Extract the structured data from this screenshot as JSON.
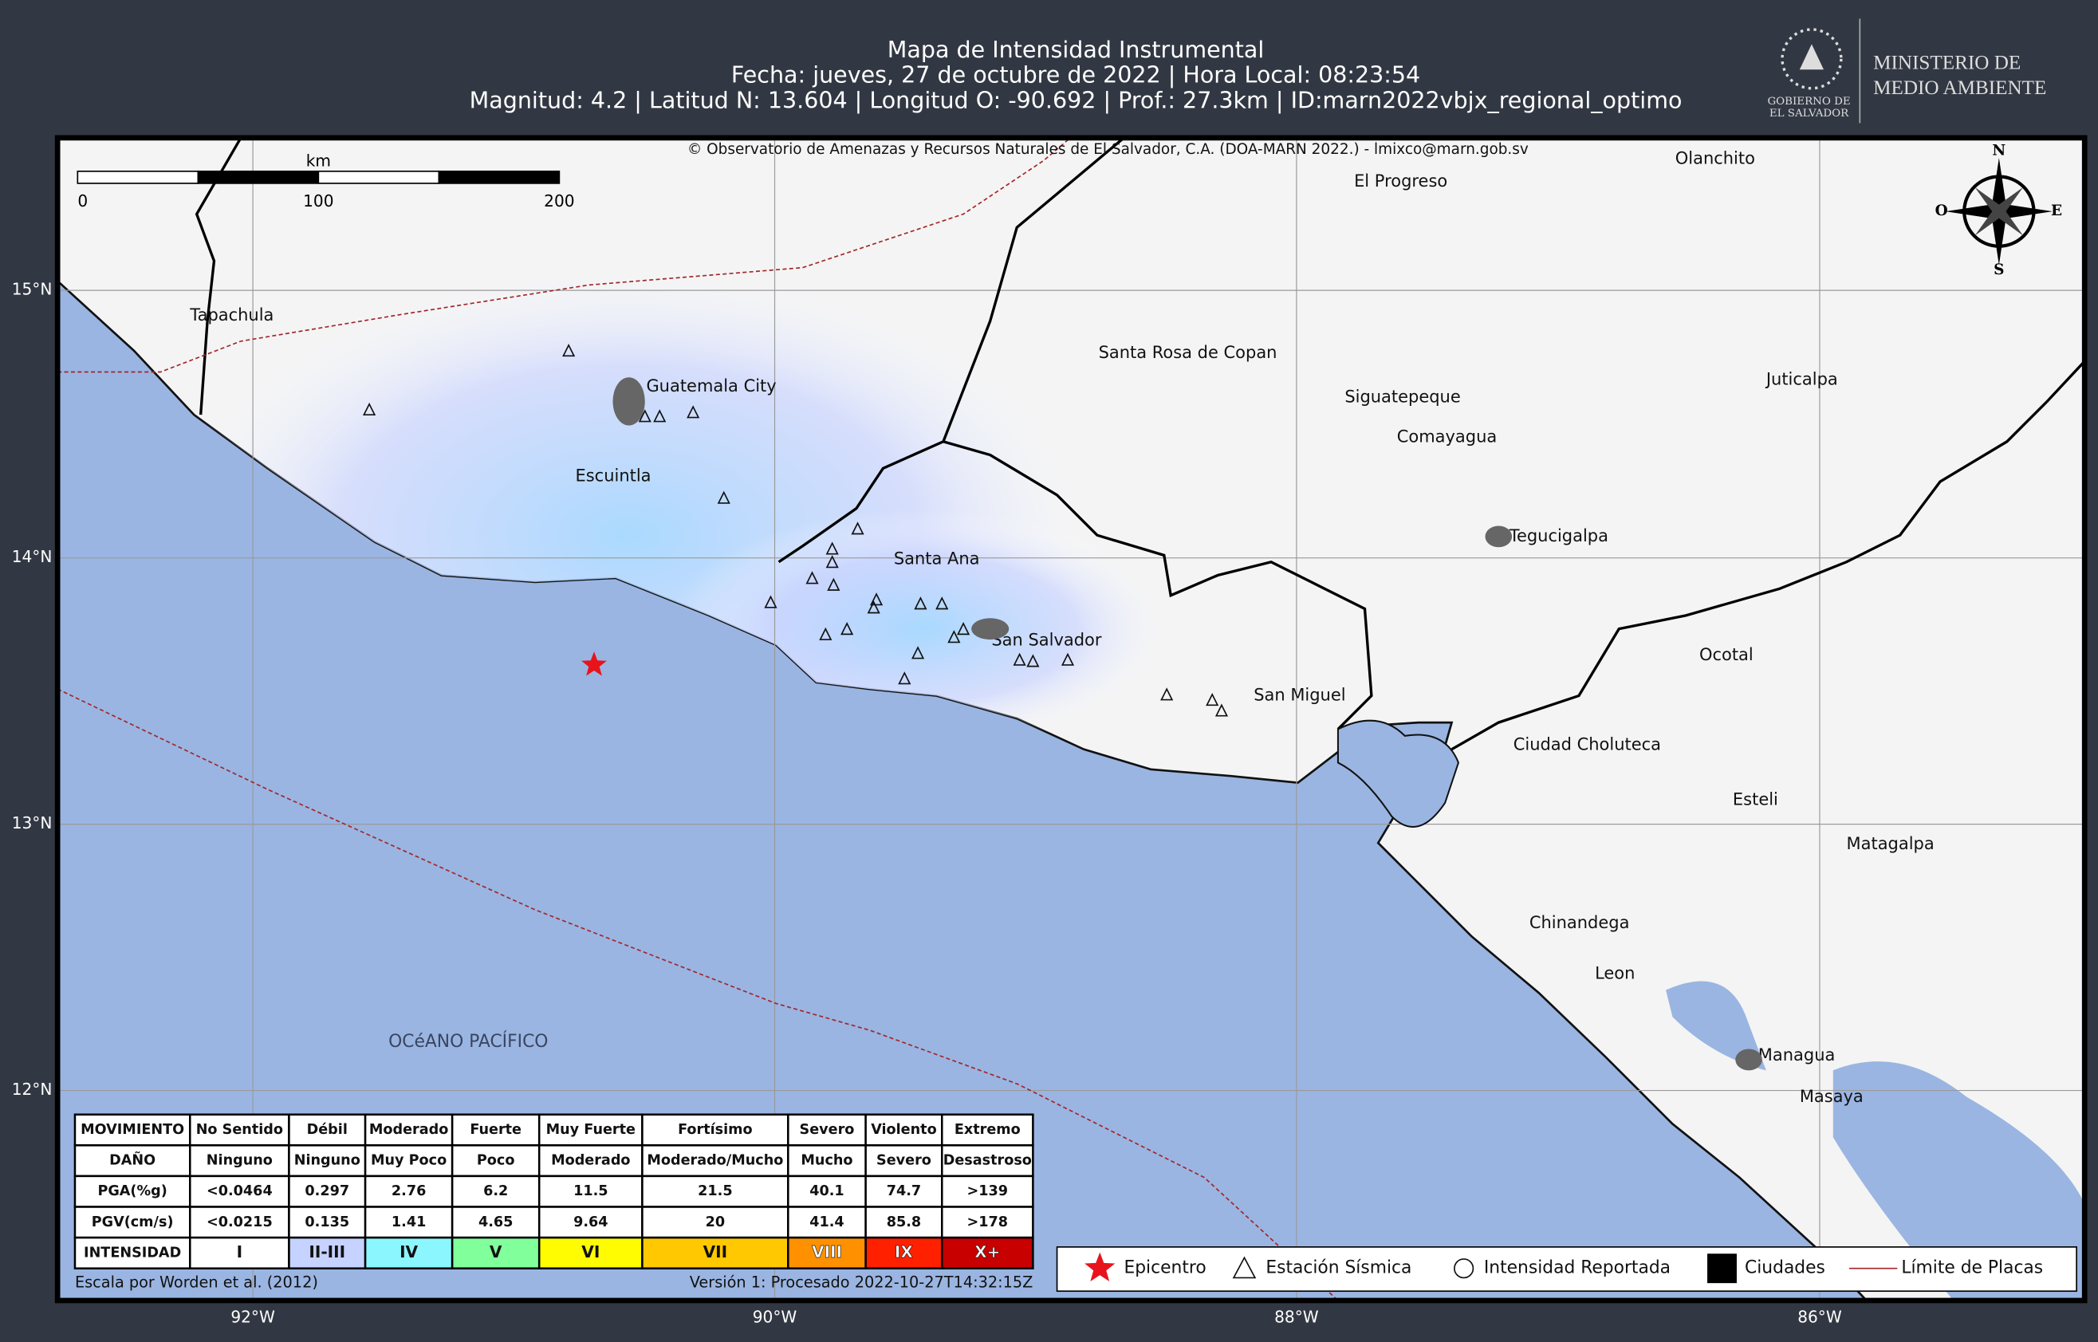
{
  "header": {
    "title": "Mapa de Intensidad Instrumental",
    "date_line": "Fecha: jueves, 27 de octubre de 2022 | Hora Local: 08:23:54",
    "params_line": "Magnitud: 4.2 | Latitud N: 13.604 | Longitud O: -90.692 | Prof.: 27.3km | ID:marn2022vbjx_regional_optimo"
  },
  "logo": {
    "gov": [
      "GOBIERNO DE",
      "EL SALVADOR"
    ],
    "ministry": [
      "MINISTERIO DE",
      "MEDIO AMBIENTE"
    ]
  },
  "map": {
    "copyright": "© Observatorio de Amenazas y Recursos Naturales de El Salvador, C.A. (DOA-MARN 2022.) - lmixco@marn.gob.sv",
    "scale": {
      "unit": "km",
      "labels": [
        "0",
        "100",
        "200"
      ]
    },
    "compass": {
      "n": "N",
      "s": "S",
      "w": "O",
      "e": "E"
    },
    "cities": [
      "Tapachula",
      "Guatemala City",
      "Escuintla",
      "Santa Ana",
      "San Salvador",
      "San Miguel",
      "El Progreso",
      "Olanchito",
      "Santa Rosa de Copan",
      "Siguatepeque",
      "Comayagua",
      "Juticalpa",
      "Tegucigalpa",
      "Ocotal",
      "Ciudad Choluteca",
      "Esteli",
      "Matagalpa",
      "Chinandega",
      "Leon",
      "Managua",
      "Masaya"
    ],
    "ocean_label": "OCéANO PACÍFICO",
    "lat_labels": [
      "15°N",
      "14°N",
      "13°N",
      "12°N"
    ],
    "lon_labels": [
      "92°W",
      "90°W",
      "88°W",
      "86°W"
    ]
  },
  "table": {
    "rows": [
      [
        "MOVIMIENTO",
        "No Sentido",
        "Débil",
        "Moderado",
        "Fuerte",
        "Muy Fuerte",
        "Fortísimo",
        "Severo",
        "Violento",
        "Extremo"
      ],
      [
        "DAÑO",
        "Ninguno",
        "Ninguno",
        "Muy Poco",
        "Poco",
        "Moderado",
        "Moderado/Mucho",
        "Mucho",
        "Severo",
        "Desastroso"
      ],
      [
        "PGA(%g)",
        "<0.0464",
        "0.297",
        "2.76",
        "6.2",
        "11.5",
        "21.5",
        "40.1",
        "74.7",
        ">139"
      ],
      [
        "PGV(cm/s)",
        "<0.0215",
        "0.135",
        "1.41",
        "4.65",
        "9.64",
        "20",
        "41.4",
        "85.8",
        ">178"
      ],
      [
        "INTENSIDAD",
        "I",
        "II-III",
        "IV",
        "V",
        "VI",
        "VII",
        "VIII",
        "IX",
        "X+"
      ]
    ],
    "intensity_colors": [
      "#ffffff",
      "#ffffff",
      "#c6d2ff",
      "#8cf6ff",
      "#80ff9a",
      "#fffb00",
      "#ffc800",
      "#ff9100",
      "#ff2000",
      "#c80000"
    ]
  },
  "legend": {
    "items": [
      "Epicentro",
      "Estación Sísmica",
      "Intensidad Reportada",
      "Ciudades",
      "Límite de Placas"
    ]
  },
  "footer": {
    "left": "Escala por Worden et al. (2012)",
    "right": "Versión 1: Procesado 2022-10-27T14:32:15Z"
  }
}
